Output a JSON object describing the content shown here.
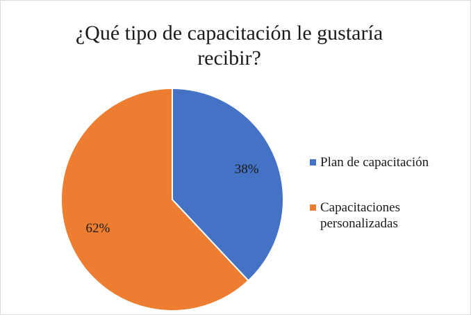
{
  "chart_data": {
    "type": "pie",
    "title": "¿Qué tipo de capacitación le gustaría recibir?",
    "categories": [
      "Plan de capacitación",
      "Capacitaciones personalizadas"
    ],
    "values": [
      38,
      62
    ],
    "value_labels": [
      "38%",
      "62%"
    ],
    "colors": [
      "#4472c4",
      "#ed7d31"
    ],
    "legend": "right"
  }
}
